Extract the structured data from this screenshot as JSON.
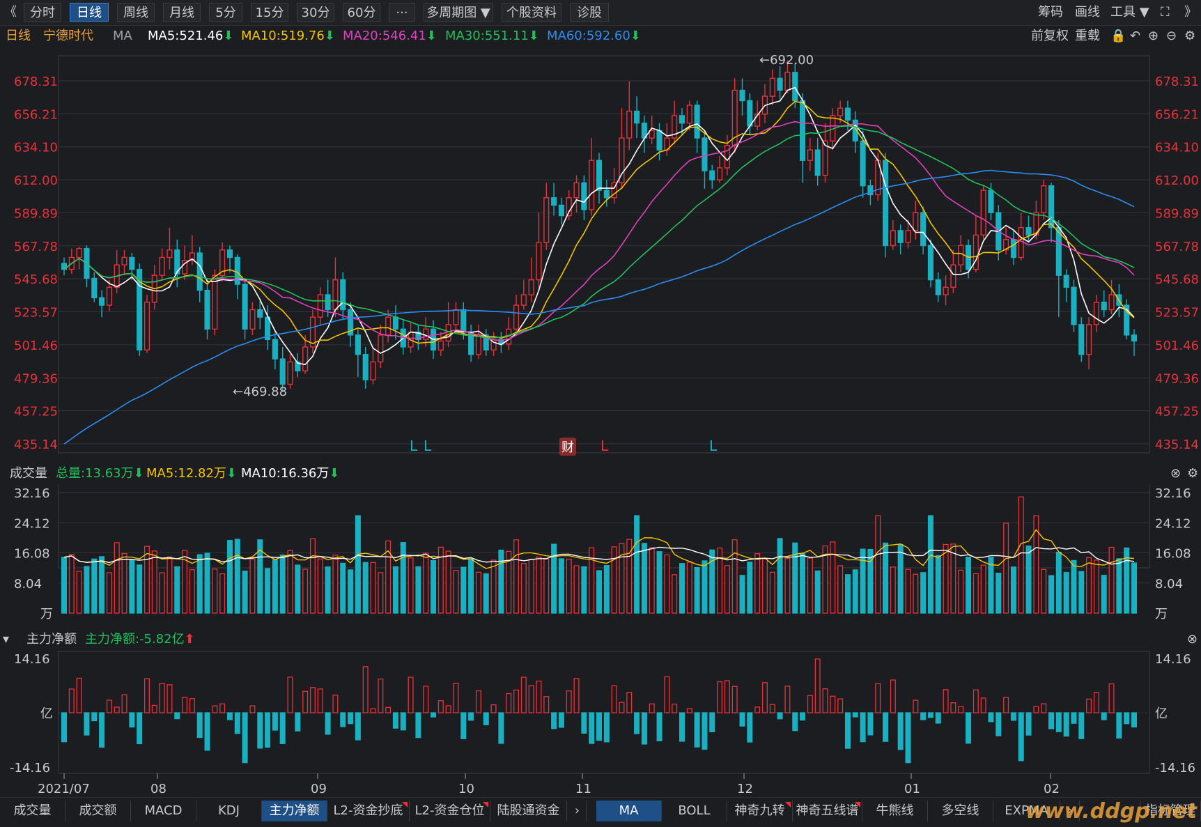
{
  "toolbar": {
    "back": "《",
    "tabs": [
      "分时",
      "日线",
      "周线",
      "月线",
      "5分",
      "15分",
      "30分",
      "60分",
      "···",
      "多周期图 ▼",
      "个股资料",
      "诊股"
    ],
    "active_tab": "日线",
    "right": {
      "chips": "筹码",
      "draw": "画线",
      "tools": "工具 ▼",
      "expand": "⛶",
      "more": "》"
    }
  },
  "ma_bar": {
    "period": "日线",
    "stock": "宁德时代",
    "ind": "MA",
    "ma5": "MA5:521.46",
    "ma10": "MA10:519.76",
    "ma20": "MA20:546.41",
    "ma30": "MA30:551.11",
    "ma60": "MA60:592.60",
    "adjust": "前复权",
    "reload": "重载"
  },
  "colors": {
    "up": "#e8323a",
    "down": "#19b1c1",
    "ma5": "#ffffff",
    "ma10": "#f5c400",
    "ma20": "#e040c0",
    "ma30": "#22c05a",
    "ma60": "#2a8cf0",
    "axis_label": "#e8323a",
    "grid": "#33343a"
  },
  "price_axis": {
    "ticks": [
      "678.31",
      "656.21",
      "634.10",
      "612.00",
      "589.89",
      "567.78",
      "545.68",
      "523.57",
      "501.46",
      "479.36",
      "457.25",
      "435.14"
    ],
    "high_label": "←692.00",
    "low_label": "←469.88",
    "markers": [
      "L",
      "L",
      "财",
      "L",
      "L"
    ]
  },
  "volume_panel": {
    "title": "成交量",
    "total": "总量:13.63万",
    "ma5": "MA5:12.82万",
    "ma10": "MA10:16.36万",
    "ticks": [
      "32.16",
      "24.12",
      "16.08",
      "8.04",
      "万"
    ]
  },
  "flow_panel": {
    "title": "主力净额",
    "value": "主力净额:-5.82亿",
    "ticks": [
      "14.16",
      "亿",
      "-14.16"
    ]
  },
  "x_axis": [
    "2021/07",
    "08",
    "09",
    "10",
    "11",
    "12",
    "01",
    "02"
  ],
  "bottom_tabs": [
    "成交量",
    "成交额",
    "MACD",
    "KDJ",
    "主力净额",
    "L2-资金抄底",
    "L2-资金仓位",
    "陆股通资金"
  ],
  "bottom_active": "主力净额",
  "bottom_tabs2": [
    "MA",
    "BOLL",
    "神奇九转",
    "神奇五线谱",
    "牛熊线",
    "多空线",
    "EXPMA"
  ],
  "bottom_active2": "MA",
  "indicator_mgr": "指标管理",
  "watermark": "www.ddgp.net",
  "chart_data": {
    "type": "candlestick",
    "ylim": [
      435.14,
      692.0
    ],
    "candles": [
      [
        556,
        552,
        560,
        548
      ],
      [
        552,
        560,
        566,
        549
      ],
      [
        560,
        566,
        567,
        552
      ],
      [
        566,
        546,
        568,
        540
      ],
      [
        546,
        533,
        550,
        530
      ],
      [
        533,
        528,
        538,
        520
      ],
      [
        528,
        540,
        545,
        524
      ],
      [
        540,
        555,
        565,
        536
      ],
      [
        555,
        560,
        565,
        548
      ],
      [
        560,
        552,
        563,
        545
      ],
      [
        552,
        498,
        556,
        494
      ],
      [
        498,
        530,
        535,
        496
      ],
      [
        530,
        548,
        555,
        525
      ],
      [
        548,
        560,
        566,
        545
      ],
      [
        560,
        565,
        580,
        552
      ],
      [
        565,
        549,
        572,
        540
      ],
      [
        549,
        558,
        568,
        545
      ],
      [
        558,
        563,
        575,
        555
      ],
      [
        563,
        538,
        567,
        530
      ],
      [
        538,
        512,
        545,
        505
      ],
      [
        512,
        548,
        552,
        508
      ],
      [
        548,
        565,
        570,
        544
      ],
      [
        565,
        560,
        568,
        550
      ],
      [
        560,
        542,
        562,
        532
      ],
      [
        542,
        512,
        545,
        505
      ],
      [
        512,
        525,
        530,
        508
      ],
      [
        525,
        520,
        532,
        512
      ],
      [
        520,
        505,
        528,
        498
      ],
      [
        505,
        492,
        510,
        485
      ],
      [
        492,
        475,
        500,
        469.88
      ],
      [
        475,
        490,
        495,
        472
      ],
      [
        490,
        484,
        496,
        480
      ],
      [
        484,
        500,
        508,
        482
      ],
      [
        500,
        520,
        525,
        496
      ],
      [
        520,
        535,
        540,
        515
      ],
      [
        535,
        525,
        545,
        520
      ],
      [
        525,
        545,
        560,
        520
      ],
      [
        545,
        525,
        550,
        518
      ],
      [
        525,
        508,
        530,
        500
      ],
      [
        508,
        495,
        512,
        480
      ],
      [
        495,
        478,
        500,
        472
      ],
      [
        478,
        490,
        500,
        475
      ],
      [
        490,
        508,
        515,
        486
      ],
      [
        508,
        520,
        525,
        503
      ],
      [
        520,
        512,
        528,
        505
      ],
      [
        512,
        500,
        518,
        495
      ],
      [
        500,
        510,
        516,
        496
      ],
      [
        510,
        505,
        515,
        498
      ],
      [
        505,
        512,
        520,
        500
      ],
      [
        512,
        498,
        518,
        492
      ],
      [
        498,
        504,
        510,
        494
      ],
      [
        504,
        515,
        530,
        500
      ],
      [
        515,
        525,
        530,
        510
      ],
      [
        525,
        510,
        530,
        505
      ],
      [
        510,
        495,
        515,
        490
      ],
      [
        495,
        508,
        515,
        492
      ],
      [
        508,
        498,
        512,
        494
      ],
      [
        498,
        505,
        510,
        494
      ],
      [
        505,
        502,
        510,
        496
      ],
      [
        502,
        512,
        520,
        498
      ],
      [
        512,
        528,
        535,
        508
      ],
      [
        528,
        535,
        545,
        525
      ],
      [
        535,
        545,
        560,
        530
      ],
      [
        545,
        570,
        590,
        540
      ],
      [
        570,
        600,
        610,
        565
      ],
      [
        600,
        595,
        610,
        588
      ],
      [
        595,
        588,
        600,
        582
      ],
      [
        588,
        600,
        605,
        585
      ],
      [
        600,
        610,
        615,
        590
      ],
      [
        610,
        592,
        615,
        585
      ],
      [
        592,
        625,
        640,
        588
      ],
      [
        625,
        605,
        630,
        596
      ],
      [
        605,
        600,
        612,
        594
      ],
      [
        600,
        610,
        620,
        596
      ],
      [
        610,
        640,
        660,
        606
      ],
      [
        640,
        658,
        678,
        632
      ],
      [
        658,
        650,
        668,
        640
      ],
      [
        650,
        640,
        655,
        630
      ],
      [
        640,
        645,
        655,
        636
      ],
      [
        645,
        632,
        650,
        625
      ],
      [
        632,
        640,
        650,
        628
      ],
      [
        640,
        655,
        665,
        636
      ],
      [
        655,
        650,
        660,
        642
      ],
      [
        650,
        662,
        665,
        645
      ],
      [
        662,
        640,
        665,
        630
      ],
      [
        640,
        618,
        645,
        606
      ],
      [
        618,
        612,
        622,
        606
      ],
      [
        612,
        620,
        628,
        610
      ],
      [
        620,
        635,
        642,
        615
      ],
      [
        635,
        672,
        680,
        630
      ],
      [
        672,
        665,
        680,
        655
      ],
      [
        665,
        648,
        670,
        642
      ],
      [
        648,
        656,
        665,
        645
      ],
      [
        656,
        668,
        676,
        650
      ],
      [
        668,
        680,
        686,
        662
      ],
      [
        680,
        672,
        688,
        666
      ],
      [
        672,
        684,
        692,
        670
      ],
      [
        684,
        665,
        690,
        660
      ],
      [
        665,
        625,
        670,
        610
      ],
      [
        625,
        632,
        640,
        618
      ],
      [
        632,
        615,
        640,
        608
      ],
      [
        615,
        638,
        650,
        610
      ],
      [
        638,
        655,
        660,
        632
      ],
      [
        655,
        660,
        665,
        650
      ],
      [
        660,
        652,
        665,
        645
      ],
      [
        652,
        638,
        658,
        630
      ],
      [
        638,
        608,
        645,
        600
      ],
      [
        608,
        602,
        612,
        595
      ],
      [
        602,
        625,
        630,
        598
      ],
      [
        625,
        568,
        630,
        560
      ],
      [
        568,
        578,
        585,
        565
      ],
      [
        578,
        570,
        582,
        562
      ],
      [
        570,
        578,
        585,
        566
      ],
      [
        578,
        590,
        598,
        572
      ],
      [
        590,
        568,
        594,
        562
      ],
      [
        568,
        545,
        572,
        540
      ],
      [
        545,
        535,
        550,
        530
      ],
      [
        535,
        540,
        548,
        528
      ],
      [
        540,
        555,
        565,
        536
      ],
      [
        555,
        568,
        575,
        550
      ],
      [
        568,
        552,
        572,
        546
      ],
      [
        552,
        575,
        588,
        550
      ],
      [
        575,
        605,
        608,
        572
      ],
      [
        605,
        590,
        610,
        585
      ],
      [
        590,
        565,
        595,
        558
      ],
      [
        565,
        572,
        580,
        562
      ],
      [
        572,
        560,
        578,
        555
      ],
      [
        560,
        580,
        590,
        558
      ],
      [
        580,
        575,
        588,
        570
      ],
      [
        575,
        590,
        598,
        572
      ],
      [
        590,
        608,
        612,
        585
      ],
      [
        608,
        580,
        610,
        570
      ],
      [
        580,
        548,
        585,
        520
      ],
      [
        548,
        540,
        552,
        530
      ],
      [
        540,
        515,
        545,
        510
      ],
      [
        515,
        495,
        520,
        490
      ],
      [
        495,
        515,
        520,
        485
      ],
      [
        515,
        530,
        535,
        510
      ],
      [
        530,
        525,
        538,
        520
      ],
      [
        525,
        535,
        545,
        522
      ],
      [
        535,
        528,
        542,
        520
      ],
      [
        528,
        508,
        532,
        505
      ],
      [
        508,
        504,
        512,
        494
      ]
    ],
    "volume_ylim": [
      0,
      32.16
    ],
    "flow_ylim": [
      -14.16,
      14.16
    ]
  }
}
